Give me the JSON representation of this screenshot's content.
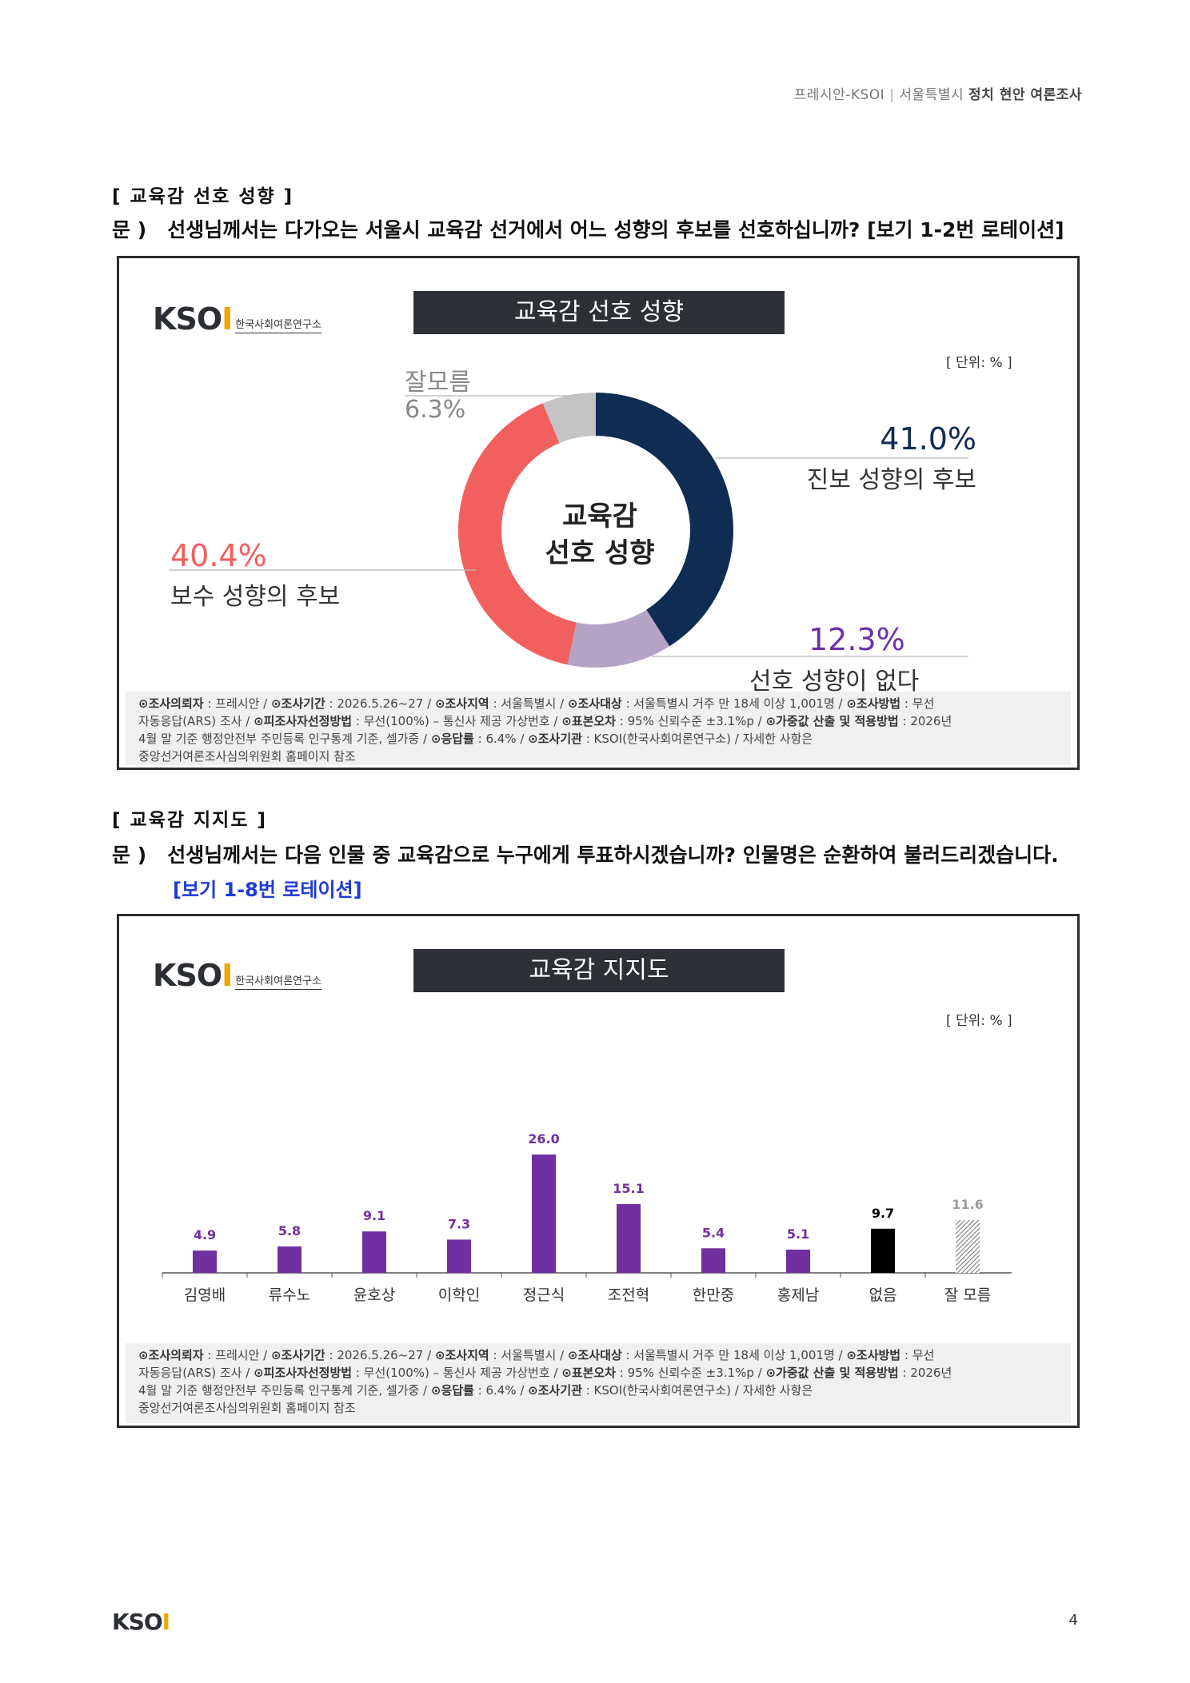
{
  "header": {
    "org": "프레시안-KSOI",
    "region": "서울특별시",
    "title_bold": "정치 현안 여론조사"
  },
  "section1": {
    "title": "[ 교육감 선호 성향 ]",
    "q_prefix": "문 )",
    "question": "선생님께서는 다가오는 서울시 교육감 선거에서 어느 성향의 후보를 선호하십니까? [보기 1-2번 로테이션]"
  },
  "panel1": {
    "logo_text": "KSOI",
    "logo_sub": "한국사회여론연구소",
    "title": "교육감 선호 성향",
    "unit": "[ 단위: % ]",
    "center_line1": "교육감",
    "center_line2": "선호 성향"
  },
  "section2": {
    "title": "[ 교육감 지지도 ]",
    "q_prefix": "문 )",
    "question": "선생님께서는 다음 인물 중 교육감으로 누구에게 투표하시겠습니까? 인물명은 순환하여 불러드리겠습니다.",
    "rotation": "[보기 1-8번 로테이션]"
  },
  "panel2": {
    "logo_text": "KSOI",
    "logo_sub": "한국사회여론연구소",
    "title": "교육감 지지도",
    "unit": "[ 단위: % ]"
  },
  "footnote": {
    "l1_k1": "⊙조사의뢰자",
    "l1_v1": " : 프레시안 / ",
    "l1_k2": "⊙조사기간",
    "l1_v2": " : 2026.5.26~27 / ",
    "l1_k3": "⊙조사지역",
    "l1_v3": " : 서울특별시 / ",
    "l1_k4": "⊙조사대상",
    "l1_v4": " : 서울특별시 거주 만 18세 이상 1,001명 / ",
    "l1_k5": "⊙조사방법",
    "l1_v5": " : 무선",
    "l2_v0": "자동응답(ARS) 조사 / ",
    "l2_k1": "⊙피조사자선정방법",
    "l2_v1": " : 무선(100%) – 통신사 제공 가상번호 / ",
    "l2_k2": "⊙표본오차",
    "l2_v2": " : 95% 신뢰수준 ±3.1%p / ",
    "l2_k3": "⊙가중값 산출 및 적용방법",
    "l2_v3": " : 2026년",
    "l3_v0": "4월 말 기준 행정안전부 주민등록 인구통계 기준, 셀가중 / ",
    "l3_k1": "⊙응답률",
    "l3_v1": " : 6.4% / ",
    "l3_k2": "⊙조사기관",
    "l3_v2": " : KSOI(한국사회여론연구소) / 자세한 사항은",
    "l4_v0": "중앙선거여론조사심의위원회 홈페이지 참조"
  },
  "page": {
    "number": "4",
    "footer_logo": "KSOI"
  },
  "chart_data": [
    {
      "type": "pie",
      "title": "교육감 선호 성향",
      "categories": [
        "진보 성향의 후보",
        "선호 성향이 없다",
        "보수 성향의 후보",
        "잘모름"
      ],
      "values": [
        41.0,
        12.3,
        40.4,
        6.3
      ],
      "value_labels": [
        "41.0%",
        "12.3%",
        "40.4%",
        "6.3%"
      ],
      "colors": [
        "#0f2c52",
        "#b5a3c6",
        "#f25f5f",
        "#c4c4c4"
      ],
      "label_colors": [
        "#0f2c52",
        "#6b30a8",
        "#f25f5f",
        "#888888"
      ]
    },
    {
      "type": "bar",
      "title": "교육감 지지도",
      "categories": [
        "김영배",
        "류수노",
        "윤호상",
        "이학인",
        "정근식",
        "조전혁",
        "한만중",
        "홍제남",
        "없음",
        "잘 모름"
      ],
      "values": [
        4.9,
        5.8,
        9.1,
        7.3,
        26.0,
        15.1,
        5.4,
        5.1,
        9.7,
        11.6
      ],
      "value_labels": [
        "4.9",
        "5.8",
        "9.1",
        "7.3",
        "26.0",
        "15.1",
        "5.4",
        "5.1",
        "9.7",
        "11.6"
      ],
      "colors": [
        "#7030a0",
        "#7030a0",
        "#7030a0",
        "#7030a0",
        "#7030a0",
        "#7030a0",
        "#7030a0",
        "#7030a0",
        "#000000",
        "#9a9a9a"
      ],
      "ylim": [
        0,
        30
      ]
    }
  ]
}
